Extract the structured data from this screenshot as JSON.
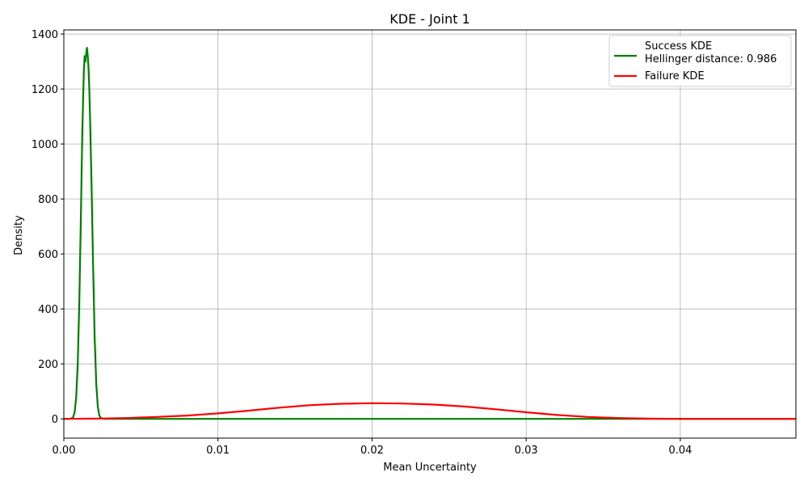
{
  "chart_data": {
    "type": "line",
    "title": "KDE - Joint 1",
    "xlabel": "Mean Uncertainty",
    "ylabel": "Density",
    "xlim": [
      0.0,
      0.0475
    ],
    "ylim": [
      -70,
      1415
    ],
    "xticks": [
      {
        "value": 0.0,
        "label": "0.00"
      },
      {
        "value": 0.01,
        "label": "0.01"
      },
      {
        "value": 0.02,
        "label": "0.02"
      },
      {
        "value": 0.03,
        "label": "0.03"
      },
      {
        "value": 0.04,
        "label": "0.04"
      }
    ],
    "yticks": [
      {
        "value": 0,
        "label": "0"
      },
      {
        "value": 200,
        "label": "200"
      },
      {
        "value": 400,
        "label": "400"
      },
      {
        "value": 600,
        "label": "600"
      },
      {
        "value": 800,
        "label": "800"
      },
      {
        "value": 1000,
        "label": "1000"
      },
      {
        "value": 1200,
        "label": "1200"
      },
      {
        "value": 1400,
        "label": "1400"
      }
    ],
    "grid": true,
    "legend": {
      "position": "upper right",
      "entries": [
        {
          "series": 0,
          "lines": [
            "Success KDE",
            "Hellinger distance: 0.986"
          ]
        },
        {
          "series": 1,
          "lines": [
            "Failure KDE"
          ]
        }
      ]
    },
    "series": [
      {
        "name": "Success KDE",
        "color": "#008000",
        "x": [
          0.0,
          0.0004,
          0.0006,
          0.0007,
          0.0008,
          0.0009,
          0.001,
          0.0011,
          0.0012,
          0.0013,
          0.00135,
          0.0014,
          0.00145,
          0.0015,
          0.00155,
          0.0016,
          0.00165,
          0.0017,
          0.0018,
          0.0019,
          0.002,
          0.0021,
          0.0022,
          0.0023,
          0.0024,
          0.0026,
          0.003,
          0.01,
          0.02,
          0.03,
          0.04,
          0.0475
        ],
        "y": [
          0,
          0,
          5,
          25,
          80,
          200,
          420,
          720,
          1050,
          1270,
          1320,
          1300,
          1330,
          1350,
          1320,
          1280,
          1200,
          1100,
          850,
          560,
          300,
          130,
          45,
          12,
          3,
          0,
          0,
          0,
          0,
          0,
          0,
          0
        ]
      },
      {
        "name": "Failure KDE",
        "color": "#ff0000",
        "x": [
          0.0,
          0.002,
          0.004,
          0.006,
          0.008,
          0.01,
          0.012,
          0.014,
          0.016,
          0.018,
          0.02,
          0.022,
          0.024,
          0.026,
          0.028,
          0.03,
          0.032,
          0.034,
          0.036,
          0.038,
          0.04,
          0.042,
          0.044,
          0.0475
        ],
        "y": [
          0,
          1,
          3,
          7,
          12,
          20,
          30,
          41,
          50,
          55,
          57,
          56,
          52,
          45,
          35,
          24,
          14,
          7,
          3,
          1,
          0,
          0,
          0,
          0
        ]
      }
    ]
  }
}
